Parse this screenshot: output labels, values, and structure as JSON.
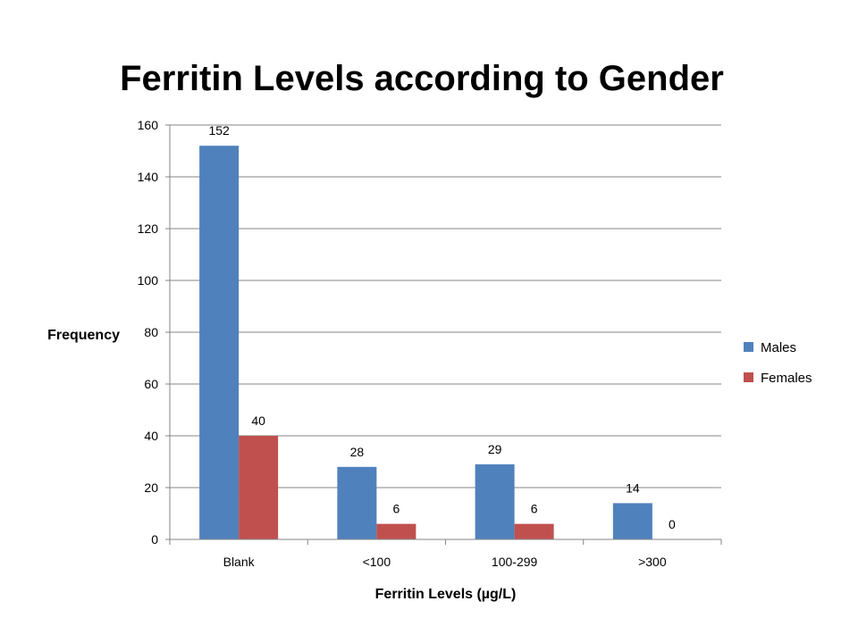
{
  "chart_data": {
    "type": "bar",
    "title": "Ferritin Levels according to Gender",
    "xlabel": "Ferritin Levels (µg/L)",
    "ylabel": "Frequency",
    "categories": [
      "Blank",
      "<100",
      "100-299",
      ">300"
    ],
    "series": [
      {
        "name": "Males",
        "values": [
          152,
          28,
          29,
          14
        ],
        "color": "#4F81BD"
      },
      {
        "name": "Females",
        "values": [
          40,
          6,
          6,
          0
        ],
        "color": "#C0504D"
      }
    ],
    "ylim": [
      0,
      160
    ],
    "yticks": [
      0,
      20,
      40,
      60,
      80,
      100,
      120,
      140,
      160
    ],
    "grid": true,
    "legend": "right",
    "data_labels": true
  }
}
